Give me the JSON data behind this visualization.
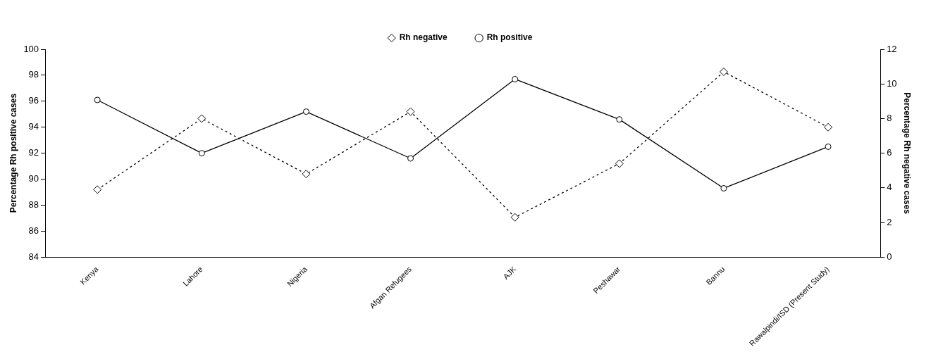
{
  "chart_data": {
    "type": "line",
    "categories": [
      "Kenya",
      "Lahore",
      "Nigeria",
      "Afgan Refugees",
      "AJK",
      "Peshawar",
      "Bannu",
      "Rawalpindi/ISD (Present Study)"
    ],
    "ylabel": "Percentage Rh positive cases",
    "y2label": "Percentage Rh negative cases",
    "ylim": [
      84,
      100
    ],
    "yticks": [
      84,
      86,
      88,
      90,
      92,
      94,
      96,
      98,
      100
    ],
    "y2lim": [
      0,
      12
    ],
    "y2ticks": [
      0,
      2,
      4,
      6,
      8,
      10,
      12
    ],
    "grid": false,
    "legend": "top",
    "series": [
      {
        "name": "Rh negative",
        "color": "#000000",
        "axis": "y2",
        "marker": "diamond",
        "line_style": "dotted",
        "values": [
          3.9,
          8.0,
          4.8,
          8.4,
          2.3,
          5.4,
          10.7,
          7.5
        ]
      },
      {
        "name": "Rh positive",
        "color": "#000000",
        "marker": "circle",
        "line_style": "solid",
        "values": [
          96.1,
          92.0,
          95.2,
          91.6,
          97.7,
          94.6,
          89.3,
          92.5
        ]
      }
    ]
  }
}
